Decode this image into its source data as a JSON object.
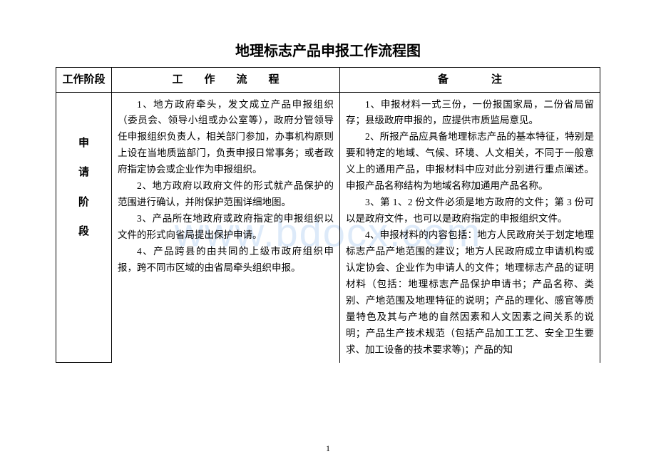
{
  "watermark": "www.bdocx.com",
  "title": "地理标志产品申报工作流程图",
  "headers": {
    "stage": "工作阶段",
    "process": "工　　作　　流　　程",
    "note": "备　　　　注"
  },
  "stage": {
    "c1": "申",
    "c2": "请",
    "c3": "阶",
    "c4": "段"
  },
  "process": {
    "p1": "1、地方政府牵头，发文成立产品申报组织（委员会、领导小组或办公室等），政府分管领导任申报组织负责人，相关部门参加，办事机构原则上设在当地质监部门，负责申报日常事务；或者政府指定协会或企业作为申报组织。",
    "p2": "2、地方政府以政府文件的形式就产品保护的范围进行确认，并附保护范围详细地图。",
    "p3": "3、产品所在地政府或政府指定的申报组织以文件的形式向省局提出保护申请。",
    "p4": "4、产品跨县的由共同的上级市政府组织申报，跨不同市区域的由省局牵头组织申报。"
  },
  "note": {
    "n1": "1、申报材料一式三份，一份报国家局，二份省局留存；县级政府申报的，应提供市质监局意见。",
    "n2": "2、所报产品应具备地理标志产品的基本特征，特别是要和特定的地域、气候、环境、人文相关，不同于一般意义上的通用产品，申报材料中应对此分别进行重点阐述。申报产品名称结构为地域名称加通用产品名称。",
    "n3": "3、第 1、2 份文件必须是地方政府的文件；第 3 份可以是政府文件，也可以是政府指定的申报组织文件。",
    "n4": "4、申报材料的内容包括：地方人民政府关于划定地理标志产品产地范围的建议；地方人民政府成立申请机构或认定协会、企业作为申请人的文件；地理标志产品的证明材料（包括：地理标志产品保护申请书；产品名称、类别、产地范围及地理特征的说明；产品的理化、感官等质量特色及其与产地的自然因素和人文因素之间关系的说明；产品生产技术规范（包括产品加工工艺、安全卫生要求、加工设备的技术要求等)；产品的知"
  },
  "page_number": "1"
}
